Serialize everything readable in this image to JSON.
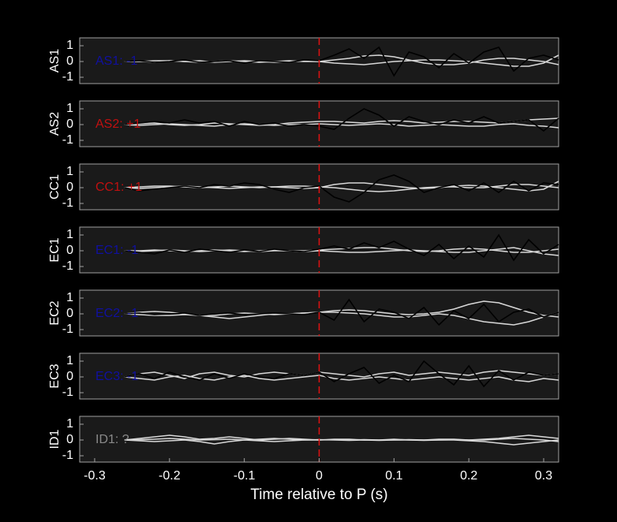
{
  "chart_data": [
    {
      "type": "line",
      "ylabel": "AS1",
      "annotation": "AS1: -1",
      "annotation_color": "#1010a0",
      "vline": 0,
      "vline_color": "#e01010",
      "x": [
        -0.26,
        -0.24,
        -0.22,
        -0.2,
        -0.18,
        -0.16,
        -0.14,
        -0.12,
        -0.1,
        -0.08,
        -0.06,
        -0.04,
        -0.02,
        0,
        0.02,
        0.04,
        0.06,
        0.08,
        0.1,
        0.12,
        0.14,
        0.16,
        0.18,
        0.2,
        0.22,
        0.24,
        0.26,
        0.28,
        0.3,
        0.32
      ],
      "xlim": [
        -0.32,
        0.32
      ],
      "ylim": [
        -1.4,
        1.5
      ],
      "yticks": [
        -1,
        0,
        1
      ],
      "series": [
        {
          "color": "#d8d8d8",
          "values": [
            0,
            0,
            0.05,
            0.05,
            0,
            -0.05,
            0,
            0.05,
            0,
            -0.05,
            0,
            0.05,
            0,
            0,
            0.1,
            0.2,
            0.35,
            0.4,
            0.3,
            0.1,
            -0.1,
            -0.2,
            -0.2,
            -0.1,
            0.1,
            0.2,
            0.2,
            0.1,
            0,
            -0.2
          ]
        },
        {
          "color": "#d8d8d8",
          "values": [
            0,
            0.02,
            -0.05,
            0.05,
            0,
            0.05,
            -0.05,
            0,
            0.05,
            0,
            -0.05,
            0,
            0.02,
            0,
            -0.1,
            -0.15,
            -0.2,
            -0.1,
            0,
            0.05,
            0.1,
            0.1,
            0.05,
            0,
            -0.1,
            -0.2,
            -0.3,
            -0.3,
            -0.1,
            0.4
          ]
        },
        {
          "color": "#000000",
          "values": [
            0,
            0.05,
            -0.05,
            0,
            0.1,
            -0.05,
            0,
            0.05,
            -0.1,
            0.05,
            0,
            -0.05,
            0.1,
            0.05,
            0.4,
            0.8,
            0.2,
            0.9,
            -0.9,
            0.6,
            0.3,
            -0.4,
            0.5,
            -0.1,
            0.6,
            0.9,
            -0.6,
            0.2,
            0.4,
            0.1
          ]
        }
      ]
    },
    {
      "type": "line",
      "ylabel": "AS2",
      "annotation": "AS2: +1",
      "annotation_color": "#c01010",
      "vline": 0,
      "vline_color": "#e01010",
      "x": [
        -0.26,
        -0.24,
        -0.22,
        -0.2,
        -0.18,
        -0.16,
        -0.14,
        -0.12,
        -0.1,
        -0.08,
        -0.06,
        -0.04,
        -0.02,
        0,
        0.02,
        0.04,
        0.06,
        0.08,
        0.1,
        0.12,
        0.14,
        0.16,
        0.18,
        0.2,
        0.22,
        0.24,
        0.26,
        0.28,
        0.3,
        0.32
      ],
      "xlim": [
        -0.32,
        0.32
      ],
      "ylim": [
        -1.4,
        1.5
      ],
      "yticks": [
        -1,
        0,
        1
      ],
      "series": [
        {
          "color": "#d8d8d8",
          "values": [
            0,
            0.05,
            0.1,
            0,
            -0.05,
            0,
            0.1,
            0.05,
            0,
            -0.05,
            0,
            0.1,
            0.15,
            0.2,
            0.2,
            0.15,
            0.1,
            0.2,
            0.25,
            0.2,
            0.1,
            0.15,
            0.2,
            0.2,
            0.15,
            0.1,
            0.2,
            0.3,
            0.35,
            0.4
          ]
        },
        {
          "color": "#d8d8d8",
          "values": [
            0,
            -0.05,
            0,
            0.05,
            0,
            -0.05,
            -0.1,
            0,
            0.05,
            0,
            -0.05,
            0,
            0,
            0.05,
            0,
            -0.05,
            0,
            0.05,
            0,
            -0.1,
            -0.05,
            0,
            -0.05,
            -0.1,
            -0.1,
            0,
            0.05,
            -0.05,
            -0.1,
            -0.2
          ]
        },
        {
          "color": "#000000",
          "values": [
            0,
            0.1,
            0.2,
            0.1,
            0.3,
            0.1,
            0.2,
            -0.1,
            0.2,
            0,
            0.1,
            -0.1,
            0,
            -0.1,
            -0.3,
            0.4,
            1,
            0.6,
            -0.1,
            0.5,
            0.2,
            0,
            0.3,
            0.1,
            0.5,
            0.1,
            0.2,
            0.3,
            -0.4,
            0.4
          ]
        }
      ]
    },
    {
      "type": "line",
      "ylabel": "CC1",
      "annotation": "CC1: +1",
      "annotation_color": "#c01010",
      "vline": 0,
      "vline_color": "#e01010",
      "x": [
        -0.26,
        -0.24,
        -0.22,
        -0.2,
        -0.18,
        -0.16,
        -0.14,
        -0.12,
        -0.1,
        -0.08,
        -0.06,
        -0.04,
        -0.02,
        0,
        0.02,
        0.04,
        0.06,
        0.08,
        0.1,
        0.12,
        0.14,
        0.16,
        0.18,
        0.2,
        0.22,
        0.24,
        0.26,
        0.28,
        0.3,
        0.32
      ],
      "xlim": [
        -0.32,
        0.32
      ],
      "ylim": [
        -1.4,
        1.5
      ],
      "yticks": [
        -1,
        0,
        1
      ],
      "series": [
        {
          "color": "#d8d8d8",
          "values": [
            0,
            0.05,
            0.1,
            0.1,
            0.05,
            0,
            0.05,
            0.1,
            0.05,
            0,
            0.05,
            0.1,
            0.1,
            0.05,
            0,
            -0.1,
            -0.2,
            -0.25,
            -0.2,
            -0.1,
            0,
            0.05,
            0.05,
            0,
            0,
            0.1,
            0.2,
            0.2,
            0.1,
            0
          ]
        },
        {
          "color": "#d8d8d8",
          "values": [
            0,
            -0.05,
            0,
            0.05,
            0.1,
            0.05,
            0,
            -0.05,
            0,
            0.05,
            0.05,
            0,
            -0.05,
            0,
            0.2,
            0.3,
            0.3,
            0.2,
            0.1,
            0,
            -0.05,
            0,
            0.1,
            0.15,
            0.1,
            0,
            -0.1,
            -0.2,
            -0.1,
            0.4
          ]
        },
        {
          "color": "#000000",
          "values": [
            0,
            -0.2,
            -0.1,
            0,
            0.1,
            0,
            0.2,
            0.1,
            0.3,
            0.2,
            -0.1,
            -0.3,
            0,
            0.1,
            -0.6,
            -0.9,
            -0.3,
            0.5,
            0.8,
            0.4,
            -0.3,
            0,
            0.2,
            -0.2,
            0.3,
            -0.3,
            0.4,
            -0.2,
            0.3,
            0.2
          ]
        }
      ]
    },
    {
      "type": "line",
      "ylabel": "EC1",
      "annotation": "EC1: -1",
      "annotation_color": "#1010a0",
      "vline": 0,
      "vline_color": "#e01010",
      "x": [
        -0.26,
        -0.24,
        -0.22,
        -0.2,
        -0.18,
        -0.16,
        -0.14,
        -0.12,
        -0.1,
        -0.08,
        -0.06,
        -0.04,
        -0.02,
        0,
        0.02,
        0.04,
        0.06,
        0.08,
        0.1,
        0.12,
        0.14,
        0.16,
        0.18,
        0.2,
        0.22,
        0.24,
        0.26,
        0.28,
        0.3,
        0.32
      ],
      "xlim": [
        -0.32,
        0.32
      ],
      "ylim": [
        -1.4,
        1.5
      ],
      "yticks": [
        -1,
        0,
        1
      ],
      "series": [
        {
          "color": "#d8d8d8",
          "values": [
            0,
            0,
            0.05,
            0,
            -0.05,
            0,
            0.05,
            0,
            -0.05,
            0,
            0.05,
            0,
            0,
            0.05,
            0.1,
            0.15,
            0.2,
            0.2,
            0.1,
            0,
            -0.05,
            0,
            0.1,
            0.15,
            0.1,
            0,
            -0.1,
            -0.1,
            0,
            0.1
          ]
        },
        {
          "color": "#d8d8d8",
          "values": [
            0,
            -0.05,
            0,
            0.05,
            0,
            -0.05,
            0,
            0.05,
            0,
            -0.05,
            0,
            0,
            -0.05,
            0,
            -0.05,
            -0.1,
            -0.1,
            -0.05,
            0,
            0.05,
            0,
            -0.05,
            -0.1,
            -0.1,
            0,
            0.1,
            0.2,
            0,
            -0.2,
            -0.3
          ]
        },
        {
          "color": "#000000",
          "values": [
            0,
            -0.1,
            -0.2,
            0.05,
            -0.1,
            0.1,
            0,
            -0.1,
            0.05,
            -0.05,
            0.1,
            0,
            -0.05,
            0.1,
            0.3,
            0.1,
            0.5,
            0.2,
            0.6,
            0.1,
            -0.3,
            0.4,
            -0.5,
            0.3,
            -0.4,
            1,
            -0.6,
            0.7,
            -0.2,
            0.4
          ]
        }
      ]
    },
    {
      "type": "line",
      "ylabel": "EC2",
      "annotation": "EC2: -1",
      "annotation_color": "#1010a0",
      "vline": 0,
      "vline_color": "#e01010",
      "x": [
        -0.26,
        -0.24,
        -0.22,
        -0.2,
        -0.18,
        -0.16,
        -0.14,
        -0.12,
        -0.1,
        -0.08,
        -0.06,
        -0.04,
        -0.02,
        0,
        0.02,
        0.04,
        0.06,
        0.08,
        0.1,
        0.12,
        0.14,
        0.16,
        0.18,
        0.2,
        0.22,
        0.24,
        0.26,
        0.28,
        0.3,
        0.32
      ],
      "xlim": [
        -0.32,
        0.32
      ],
      "ylim": [
        -1.4,
        1.5
      ],
      "yticks": [
        -1,
        0,
        1
      ],
      "series": [
        {
          "color": "#d8d8d8",
          "values": [
            0,
            0.1,
            0.15,
            0.1,
            0,
            -0.1,
            -0.1,
            0,
            0.05,
            0,
            -0.05,
            0,
            0.05,
            0.1,
            0.2,
            0.25,
            0.2,
            0.1,
            0,
            -0.05,
            0,
            0.1,
            0.3,
            0.6,
            0.8,
            0.7,
            0.4,
            0.1,
            -0.1,
            -0.2
          ]
        },
        {
          "color": "#d8d8d8",
          "values": [
            0,
            -0.05,
            -0.1,
            -0.1,
            -0.05,
            -0.1,
            -0.2,
            -0.3,
            -0.2,
            -0.1,
            0,
            0,
            0.05,
            0.1,
            0.1,
            0.05,
            0,
            -0.1,
            -0.2,
            -0.2,
            -0.1,
            0,
            -0.1,
            -0.3,
            -0.5,
            -0.6,
            -0.7,
            -0.5,
            -0.2,
            0.1
          ]
        },
        {
          "color": "#000000",
          "values": [
            0,
            0.05,
            -0.05,
            0,
            0.05,
            -0.1,
            0,
            0.05,
            -0.05,
            0,
            0.05,
            0,
            -0.05,
            0.1,
            -0.4,
            0.9,
            -0.5,
            0.3,
            0.1,
            -0.3,
            0.4,
            -0.7,
            0.2,
            -0.3,
            0.6,
            -0.5,
            0.1,
            0.3,
            -0.2,
            0.1
          ]
        }
      ]
    },
    {
      "type": "line",
      "ylabel": "EC3",
      "annotation": "EC3: -1",
      "annotation_color": "#1010a0",
      "vline": 0,
      "vline_color": "#e01010",
      "x": [
        -0.26,
        -0.24,
        -0.22,
        -0.2,
        -0.18,
        -0.16,
        -0.14,
        -0.12,
        -0.1,
        -0.08,
        -0.06,
        -0.04,
        -0.02,
        0,
        0.02,
        0.04,
        0.06,
        0.08,
        0.1,
        0.12,
        0.14,
        0.16,
        0.18,
        0.2,
        0.22,
        0.24,
        0.26,
        0.28,
        0.3,
        0.32
      ],
      "xlim": [
        -0.32,
        0.32
      ],
      "ylim": [
        -1.4,
        1.5
      ],
      "yticks": [
        -1,
        0,
        1
      ],
      "series": [
        {
          "color": "#d8d8d8",
          "values": [
            0,
            0.2,
            0.3,
            0.1,
            -0.1,
            0.2,
            0.3,
            0.1,
            0,
            0.2,
            0.3,
            0.2,
            0.1,
            0.3,
            0.2,
            0.1,
            0,
            0.2,
            0.3,
            0.1,
            0.2,
            0.3,
            0.2,
            0.1,
            0.3,
            0.4,
            0.3,
            0.2,
            0.1,
            0.2
          ]
        },
        {
          "color": "#d8d8d8",
          "values": [
            0,
            -0.1,
            -0.2,
            0,
            0.1,
            -0.1,
            -0.2,
            0,
            0.1,
            -0.1,
            -0.2,
            -0.1,
            0,
            0.1,
            -0.1,
            -0.2,
            -0.1,
            0,
            -0.1,
            -0.2,
            -0.1,
            0,
            -0.1,
            -0.2,
            -0.1,
            0,
            -0.2,
            -0.3,
            -0.1,
            -0.2
          ]
        },
        {
          "color": "#000000",
          "values": [
            0,
            0.2,
            -0.1,
            0.3,
            0,
            -0.2,
            0.2,
            -0.1,
            0.2,
            0,
            -0.1,
            0.2,
            0.1,
            0.3,
            -0.3,
            0.2,
            0.6,
            -0.4,
            0.1,
            -0.3,
            1,
            0.2,
            -0.5,
            0.7,
            -0.6,
            0.4,
            -0.2,
            0.3,
            0.1,
            0.2
          ]
        }
      ]
    },
    {
      "type": "line",
      "ylabel": "ID1",
      "annotation": "ID1: ?",
      "annotation_color": "#8a8a8a",
      "vline": 0,
      "vline_color": "#e01010",
      "x": [
        -0.26,
        -0.24,
        -0.22,
        -0.2,
        -0.18,
        -0.16,
        -0.14,
        -0.12,
        -0.1,
        -0.08,
        -0.06,
        -0.04,
        -0.02,
        0,
        0.02,
        0.04,
        0.06,
        0.08,
        0.1,
        0.12,
        0.14,
        0.16,
        0.18,
        0.2,
        0.22,
        0.24,
        0.26,
        0.28,
        0.3,
        0.32
      ],
      "xlim": [
        -0.32,
        0.32
      ],
      "ylim": [
        -1.4,
        1.5
      ],
      "yticks": [
        -1,
        0,
        1
      ],
      "xticks": [
        -0.3,
        -0.2,
        -0.1,
        0,
        0.1,
        0.2,
        0.3
      ],
      "xlabel": "Time relative to P (s)",
      "series": [
        {
          "color": "#d8d8d8",
          "values": [
            0,
            0.1,
            0.2,
            0.3,
            0.2,
            0.05,
            0.1,
            0.2,
            0.1,
            0,
            0.05,
            0.1,
            0.05,
            0,
            0.05,
            0.05,
            0,
            0,
            0.05,
            0,
            0,
            0.05,
            0.05,
            0,
            0.05,
            0.1,
            0.2,
            0.3,
            0.2,
            0.1
          ]
        },
        {
          "color": "#d8d8d8",
          "values": [
            0,
            -0.05,
            -0.1,
            -0.05,
            0,
            -0.1,
            -0.25,
            -0.1,
            0,
            -0.05,
            -0.1,
            -0.05,
            0,
            0.02,
            0,
            -0.02,
            0,
            -0.02,
            0,
            0,
            -0.02,
            0,
            0,
            -0.05,
            -0.1,
            -0.2,
            -0.3,
            -0.2,
            -0.1,
            0
          ]
        },
        {
          "color": "#d8d8d8",
          "values": [
            0,
            0.02,
            0.05,
            0.1,
            0.05,
            0,
            0.02,
            0.05,
            0,
            0.05,
            0.1,
            0.05,
            0,
            0,
            0.02,
            0,
            0.02,
            0,
            0,
            0.02,
            0,
            0,
            0.02,
            0,
            0,
            0.05,
            0.1,
            0.05,
            0,
            -0.1
          ]
        }
      ]
    }
  ]
}
